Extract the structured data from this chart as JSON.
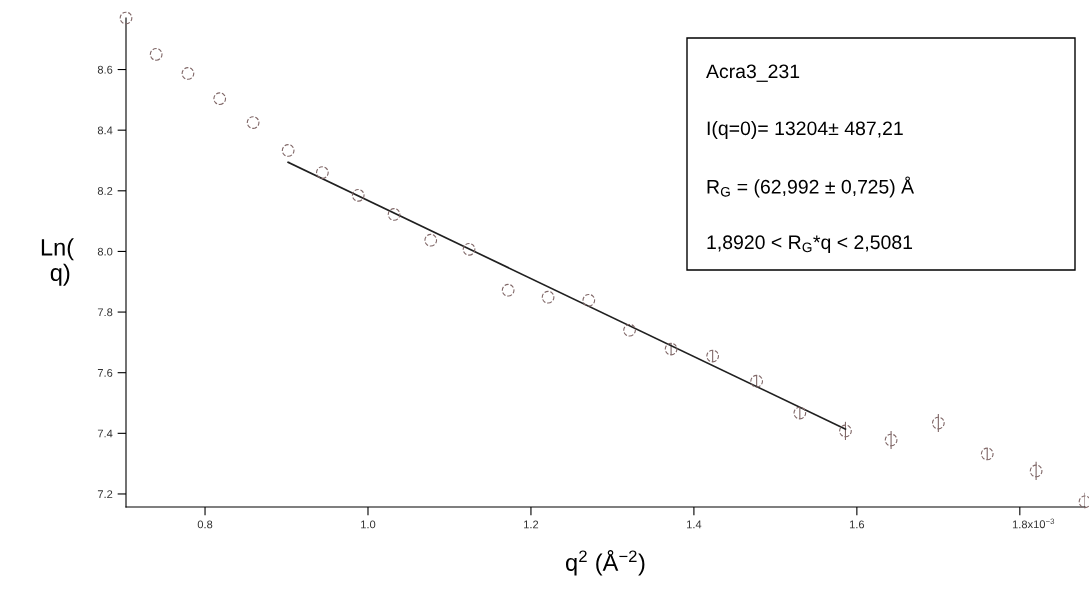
{
  "chart_data": {
    "type": "scatter",
    "xlabel": "q$^{2}$ (Å$^{−2}$)",
    "ylabel": "Ln(\n q)",
    "xlim": [
      0.703,
      1.88
    ],
    "ylim": [
      7.157,
      8.77
    ],
    "xticks": [
      0.8,
      {
        "value": 1.0,
        "label": "1.0"
      },
      1.2,
      1.4,
      1.6,
      1.8
    ],
    "yticks": [
      7.2,
      7.4,
      7.6,
      7.8,
      {
        "value": 8.0,
        "label": "8.0"
      },
      8.2,
      8.4,
      8.6
    ],
    "grid": false,
    "series": [
      {
        "marker": "circle",
        "color": "#806868",
        "x": [
          0.703,
          0.74,
          0.779,
          0.818,
          0.859,
          0.902,
          0.944,
          0.988,
          1.032,
          1.077,
          1.124,
          1.172,
          1.221,
          1.271,
          1.321,
          1.372,
          1.423,
          1.477,
          1.53,
          1.586,
          1.642,
          1.7,
          1.76,
          1.82,
          1.88
        ],
        "values": [
          8.77,
          8.65,
          8.587,
          8.504,
          8.425,
          8.333,
          8.26,
          8.185,
          8.122,
          8.037,
          8.007,
          7.872,
          7.849,
          7.839,
          7.74,
          7.678,
          7.655,
          7.572,
          7.467,
          7.408,
          7.378,
          7.434,
          7.332,
          7.276,
          7.174
        ],
        "errors": [
          null,
          null,
          null,
          null,
          null,
          null,
          null,
          null,
          null,
          null,
          null,
          null,
          null,
          null,
          null,
          0.02,
          0.02,
          0.02,
          0.02,
          0.03,
          0.03,
          0.03,
          0.02,
          0.03,
          0.03
        ]
      },
      {
        "type": "line",
        "marker": "none",
        "color": "#202020",
        "line_style": "solid",
        "x": [
          0.902,
          1.586
        ],
        "values": [
          8.294,
          7.414
        ]
      }
    ],
    "annotations": [
      "Acra3_231",
      "I(q=0)= 13204± 487,21",
      "R$_{G}$ = (62,992 ± 0,725) Å",
      "1,8920 < R$_{G}$*q < 2,5081",
      "x10$^{−3}$"
    ]
  }
}
